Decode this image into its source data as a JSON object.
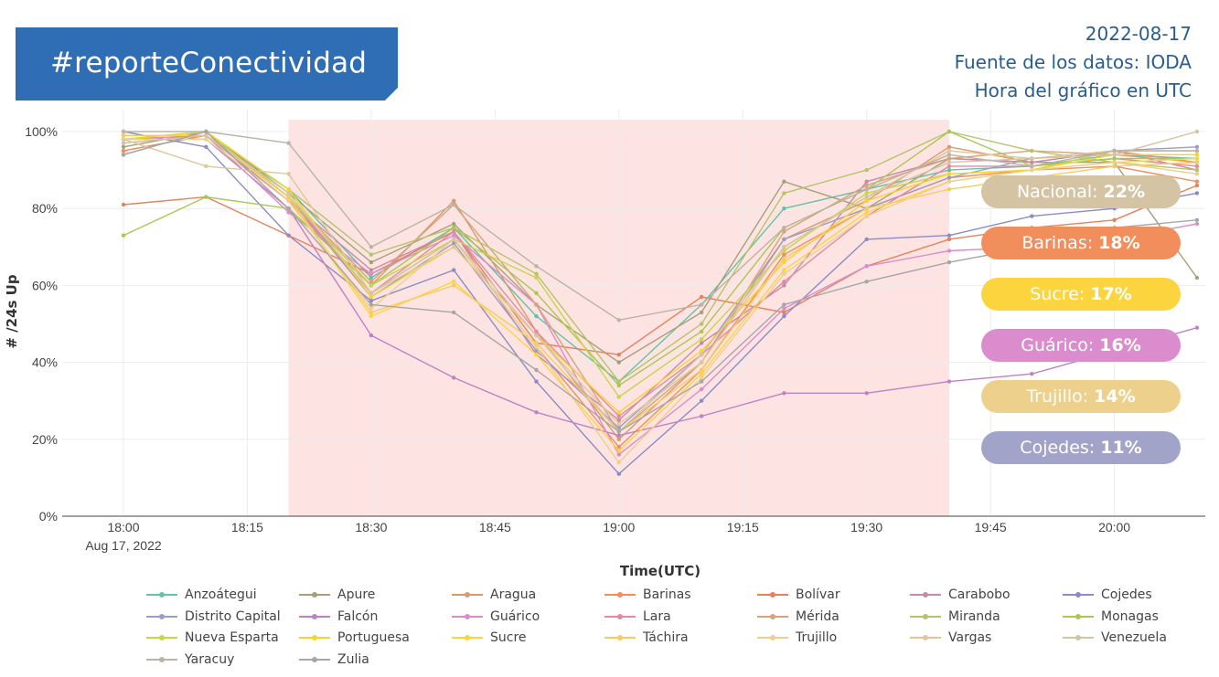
{
  "banner": {
    "text": "#reporteConectividad",
    "color": "#2f6db5"
  },
  "meta": {
    "date": "2022-08-17",
    "source": "Fuente de los datos: IODA",
    "hour": "Hora del gráfico en UTC"
  },
  "badges": [
    {
      "label": "Nacional:",
      "value": "22%",
      "color": "#d4c4a4"
    },
    {
      "label": "Barinas:",
      "value": "18%",
      "color": "#f28e5c"
    },
    {
      "label": "Sucre:",
      "value": "17%",
      "color": "#fcd43e"
    },
    {
      "label": "Guárico:",
      "value": "16%",
      "color": "#db8ccc"
    },
    {
      "label": "Trujillo:",
      "value": "14%",
      "color": "#ecd08c"
    },
    {
      "label": "Cojedes:",
      "value": "11%",
      "color": "#a1a3c9"
    }
  ],
  "chart_data": {
    "type": "line",
    "xlabel": "Time(UTC)",
    "ylabel": "# /24s Up",
    "x_ticks": [
      "18:00",
      "18:15",
      "18:30",
      "18:45",
      "19:00",
      "19:15",
      "19:30",
      "19:45",
      "20:00"
    ],
    "x_date_label": "Aug 17, 2022",
    "y_ticks": [
      "0%",
      "20%",
      "40%",
      "60%",
      "80%",
      "100%"
    ],
    "ylim": [
      0,
      100
    ],
    "x_minutes": [
      0,
      10,
      20,
      30,
      40,
      50,
      60,
      70,
      80,
      90,
      100,
      110,
      120,
      130
    ],
    "highlight_window": [
      "18:20",
      "19:40"
    ],
    "highlight_color": "#fde4e2",
    "grid": true,
    "legend_position": "bottom",
    "series": [
      {
        "name": "Anzoátegui",
        "color": "#66c2a5",
        "values": [
          97,
          99,
          85,
          62,
          75,
          52,
          35,
          55,
          80,
          85,
          90,
          91,
          94,
          93
        ]
      },
      {
        "name": "Apure",
        "color": "#a6a07a",
        "values": [
          96,
          100,
          84,
          66,
          76,
          55,
          40,
          53,
          87,
          80,
          93,
          92,
          92,
          62
        ]
      },
      {
        "name": "Aragua",
        "color": "#d89a6c",
        "values": [
          95,
          99,
          83,
          60,
          82,
          48,
          20,
          40,
          72,
          82,
          96,
          92,
          95,
          92
        ]
      },
      {
        "name": "Barinas",
        "color": "#f28e5c",
        "values": [
          95,
          99,
          82,
          58,
          72,
          44,
          18,
          38,
          68,
          80,
          88,
          90,
          91,
          87
        ]
      },
      {
        "name": "Bolívar",
        "color": "#e5825a",
        "values": [
          81,
          83,
          73,
          63,
          74,
          45,
          42,
          57,
          53,
          65,
          72,
          75,
          77,
          86
        ]
      },
      {
        "name": "Carabobo",
        "color": "#c98aa8",
        "values": [
          99,
          99,
          82,
          64,
          74,
          42,
          25,
          45,
          60,
          87,
          93,
          92,
          95,
          90
        ]
      },
      {
        "name": "Cojedes",
        "color": "#8c8cc4",
        "values": [
          100,
          96,
          73,
          56,
          64,
          35,
          11,
          30,
          52,
          72,
          73,
          78,
          80,
          84
        ]
      },
      {
        "name": "Distrito Capital",
        "color": "#9d9cc3",
        "values": [
          94,
          100,
          83,
          57,
          71,
          43,
          23,
          42,
          72,
          80,
          88,
          93,
          95,
          96
        ]
      },
      {
        "name": "Falcón",
        "color": "#bd82c6",
        "values": [
          98,
          98,
          80,
          47,
          36,
          27,
          21,
          26,
          32,
          32,
          35,
          37,
          43,
          49
        ]
      },
      {
        "name": "Guárico",
        "color": "#db8ccc",
        "values": [
          98,
          99,
          79,
          63,
          73,
          55,
          16,
          33,
          54,
          65,
          69,
          70,
          72,
          76
        ]
      },
      {
        "name": "Lara",
        "color": "#e48aa0",
        "values": [
          99,
          99,
          83,
          58,
          74,
          48,
          26,
          42,
          61,
          78,
          91,
          91,
          93,
          91
        ]
      },
      {
        "name": "Mérida",
        "color": "#d6a47a",
        "values": [
          99,
          99,
          83,
          61,
          81,
          55,
          22,
          40,
          74,
          86,
          93,
          95,
          94,
          92
        ]
      },
      {
        "name": "Miranda",
        "color": "#b5c46a",
        "values": [
          98,
          100,
          85,
          68,
          75,
          63,
          35,
          50,
          84,
          90,
          100,
          95,
          92,
          90
        ]
      },
      {
        "name": "Monagas",
        "color": "#a8c850",
        "values": [
          73,
          83,
          80,
          60,
          75,
          58,
          34,
          48,
          75,
          85,
          100,
          91,
          93,
          93
        ]
      },
      {
        "name": "Nueva Esparta",
        "color": "#c8d44a",
        "values": [
          98,
          100,
          83,
          60,
          72,
          62,
          31,
          46,
          69,
          84,
          89,
          90,
          95,
          95
        ]
      },
      {
        "name": "Portuguesa",
        "color": "#f6d430",
        "values": [
          98,
          100,
          85,
          57,
          70,
          47,
          27,
          43,
          66,
          82,
          89,
          90,
          94,
          94
        ]
      },
      {
        "name": "Sucre",
        "color": "#fcd43e",
        "values": [
          99,
          99,
          83,
          52,
          61,
          42,
          17,
          37,
          64,
          79,
          87,
          90,
          92,
          93
        ]
      },
      {
        "name": "Táchira",
        "color": "#f6cc60",
        "values": [
          99,
          99,
          83,
          53,
          60,
          45,
          22,
          38,
          67,
          80,
          85,
          88,
          91,
          92
        ]
      },
      {
        "name": "Trujillo",
        "color": "#ecd08c",
        "values": [
          98,
          98,
          82,
          54,
          72,
          44,
          14,
          36,
          63,
          78,
          87,
          90,
          92,
          89
        ]
      },
      {
        "name": "Vargas",
        "color": "#e2c698",
        "values": [
          98,
          91,
          89,
          58,
          70,
          47,
          24,
          40,
          70,
          83,
          95,
          93,
          95,
          95
        ]
      },
      {
        "name": "Venezuela",
        "color": "#d4c4a4",
        "values": [
          97,
          99,
          84,
          58,
          72,
          47,
          22,
          42,
          70,
          83,
          92,
          93,
          94,
          100
        ]
      },
      {
        "name": "Yaracuy",
        "color": "#bab4a6",
        "values": [
          100,
          100,
          97,
          70,
          81,
          65,
          51,
          55,
          75,
          85,
          94,
          91,
          95,
          95
        ]
      },
      {
        "name": "Zulia",
        "color": "#a6a6a6",
        "values": [
          94,
          100,
          80,
          55,
          53,
          38,
          22,
          35,
          55,
          61,
          66,
          70,
          75,
          77
        ]
      }
    ]
  }
}
